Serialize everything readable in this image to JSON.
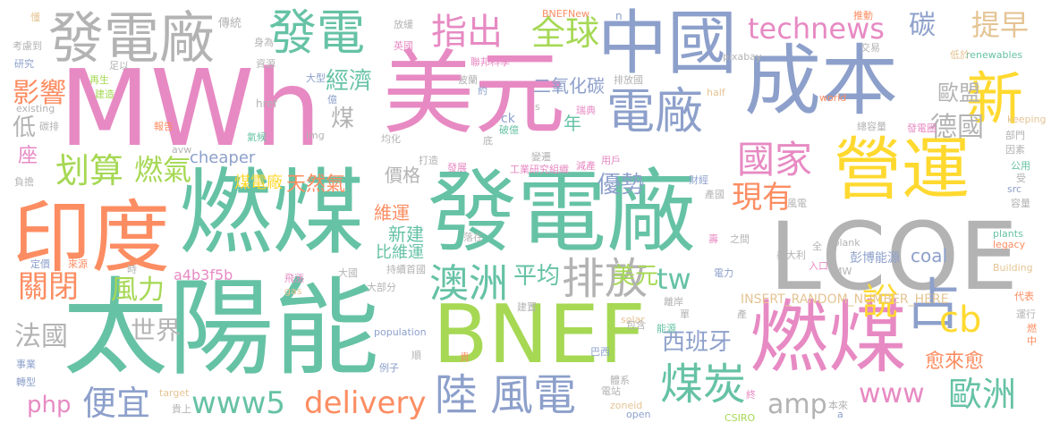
{
  "palette": {
    "teal": "#66c2a5",
    "orange": "#fc8d62",
    "blue": "#8da0cb",
    "pink": "#e78ac3",
    "green": "#a6d854",
    "yellow": "#ffd92f",
    "tan": "#e5c494",
    "gray": "#b3b3b3"
  },
  "words": {
    "w_mwh": "MWh",
    "w_taiyangneng": "太陽能",
    "w_fadianchang_big": "發電廠",
    "w_meiyuan_big": "美元",
    "w_ranmei_1": "燃煤",
    "w_lcoe": "LCOE",
    "w_chengben": "成本",
    "w_bnef": "BNEF",
    "w_yindu": "印度",
    "w_ranmei_2": "燃煤",
    "w_zhongguo": "中國",
    "w_yingyun": "營運",
    "w_fadianchang_2": "發電廠",
    "w_fadian": "發電",
    "w_dianchang": "電廠",
    "w_xin": "新",
    "w_zhan": "占",
    "w_aozhou": "澳洲",
    "w_paifang": "排放",
    "w_fengdian": "風電",
    "w_lu": "陸",
    "w_meitan": "煤炭",
    "w_technews": "technews",
    "w_zhichu": "指出",
    "w_quanqiu": "全球",
    "w_tan": "碳",
    "w_tizao": "提早",
    "w_jingji": "經濟",
    "w_yingxiang": "影響",
    "w_huasuan": "划算",
    "w_ranqi": "燃氣",
    "w_guanbi": "關閉",
    "w_fengli": "風力",
    "w_guojia": "國家",
    "w_xianyou": "現有",
    "w_deguo": "德國",
    "w_oumeng": "歐盟",
    "w_shuo": "說",
    "w_cb": "cb",
    "w_www5": "www5",
    "w_delivery": "delivery",
    "w_php": "php",
    "w_pianyi": "便宜",
    "w_ouzhou": "歐洲",
    "w_www": "www",
    "w_amp": "amp",
    "w_yulaiyu": "愈來愈",
    "w_xibanya": "西班牙",
    "w_tw": "tw",
    "w_meiyuan_small": "美元",
    "w_pingjun": "平均",
    "w_shijie": "世界",
    "w_faguo": "法國",
    "w_cheaper": "cheaper",
    "w_meidianchang": "煤電廠",
    "w_tianranqi": "天然氣",
    "w_youshi": "優勢",
    "w_eryanghuatan": "二氧化碳",
    "w_weiyun": "維運",
    "w_jiage": "價格",
    "w_xinjian": "新建",
    "w_bijiweiyun": "比維運",
    "w_nian": "年",
    "w_mei": "煤",
    "w_di": "低",
    "w_zuo": "座",
    "w_coal": "coal",
    "w_a4b3f5b": "a4b3f5b",
    "w_insert": "INSERT_RANDOM_NUMBER_HERE",
    "w_pengbo": "彭博能源",
    "w_bnefnew": "BNEFNew",
    "w_n": "n",
    "w_ck": "ck",
    "w_renewables": "renewables",
    "w_pixabay": "pixabay",
    "w_keeping": "keeping",
    "w_href": "href",
    "w_img": "img",
    "w_avw": "avw",
    "w_existing": "existing",
    "w_half": "half",
    "w_world": "world",
    "w_src": "src",
    "w_blank": "_blank",
    "w_mw": "MW",
    "w_building": "Building",
    "w_gas": "gas",
    "w_population": "population",
    "w_solar": "solar",
    "w_legacy": "legacy",
    "w_plants": "plants",
    "w_target": "target",
    "w_zoneid": "zoneid",
    "w_open": "open",
    "w_csiro": "CSIRO",
    "w_a": "a",
    "w_s": "s",
    "s_01": "懂",
    "s_02": "傳統",
    "s_03": "放緩",
    "s_04": "推動",
    "s_05": "考慮到",
    "s_06": "身為",
    "s_07": "英國",
    "s_08": "交易",
    "s_09": "低於",
    "s_10": "研究",
    "s_11": "資源",
    "s_12": "聯邦科學",
    "s_13": "排放國",
    "s_14": "足以",
    "s_15": "大型",
    "s_16": "再生",
    "s_17": "建造",
    "s_18": "約",
    "s_19": "億",
    "s_20": "波蘭",
    "s_21": "瑞典",
    "s_22": "碳排",
    "s_23": "報告",
    "s_24": "破億",
    "s_25": "氣候",
    "s_26": "均化",
    "s_27": "總容量",
    "s_28": "發電圈",
    "s_29": "部門",
    "s_30": "因素",
    "s_31": "變遷",
    "s_32": "底",
    "s_33": "打造",
    "s_34": "發展",
    "s_35": "工業研究組織",
    "s_36": "減產",
    "s_37": "用戶",
    "s_38": "財經",
    "s_39": "公用",
    "s_40": "受",
    "s_41": "負擔",
    "s_42": "產國",
    "s_43": "容量",
    "s_44": "風電",
    "s_45": "壽",
    "s_46": "之間",
    "s_47": "落在",
    "s_48": "全",
    "s_49": "入口",
    "s_50": "義大利",
    "s_51": "定價",
    "s_52": "來源",
    "s_53": "時",
    "s_54": "大國",
    "s_55": "首國",
    "s_56": "飛漲",
    "s_57": "大部分",
    "s_58": "持續",
    "s_59": "離岸",
    "s_60": "電力",
    "s_61": "單",
    "s_62": "建置",
    "s_63": "包含",
    "s_64": "能源",
    "s_65": "代表",
    "s_66": "運行",
    "s_67": "燃",
    "s_68": "中",
    "s_69": "產",
    "s_70": "事業",
    "s_71": "巴西",
    "s_72": "貴",
    "s_73": "順",
    "s_74": "例子",
    "s_75": "轉型",
    "s_76": "體系",
    "s_77": "電站",
    "s_78": "終",
    "s_79": "本來",
    "s_80": "貴上"
  }
}
